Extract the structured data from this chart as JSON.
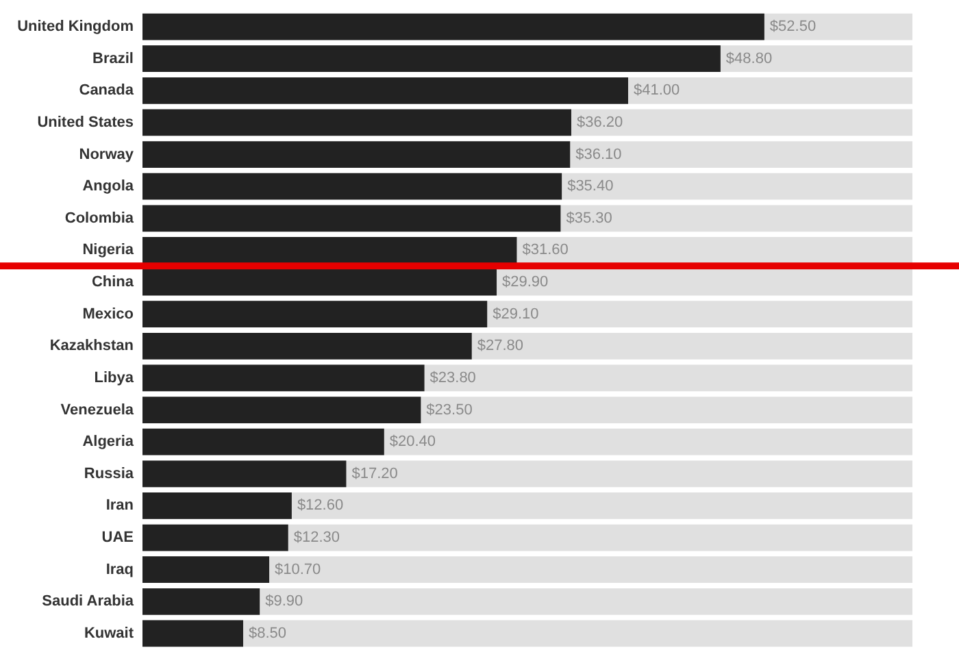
{
  "chart_data": {
    "type": "bar",
    "orientation": "horizontal",
    "tick_labels": "y",
    "xlim": [
      0,
      65
    ],
    "categories": [
      "United Kingdom",
      "Brazil",
      "Canada",
      "United States",
      "Norway",
      "Angola",
      "Colombia",
      "Nigeria",
      "China",
      "Mexico",
      "Kazakhstan",
      "Libya",
      "Venezuela",
      "Algeria",
      "Russia",
      "Iran",
      "UAE",
      "Iraq",
      "Saudi Arabia",
      "Kuwait"
    ],
    "values": [
      52.5,
      48.8,
      41.0,
      36.2,
      36.1,
      35.4,
      35.3,
      31.6,
      29.9,
      29.1,
      27.8,
      23.8,
      23.5,
      20.4,
      17.2,
      12.6,
      12.3,
      10.7,
      9.9,
      8.5
    ],
    "value_labels": [
      "$52.50",
      "$48.80",
      "$41.00",
      "$36.20",
      "$36.10",
      "$35.40",
      "$35.30",
      "$31.60",
      "$29.90",
      "$29.10",
      "$27.80",
      "$23.80",
      "$23.50",
      "$20.40",
      "$17.20",
      "$12.60",
      "$12.30",
      "$10.70",
      "$9.90",
      "$8.50"
    ],
    "color": "#222222",
    "ref_lines": [
      {
        "axis": "y",
        "value": "Nigeria",
        "label": null,
        "color": "#e60000"
      }
    ]
  }
}
